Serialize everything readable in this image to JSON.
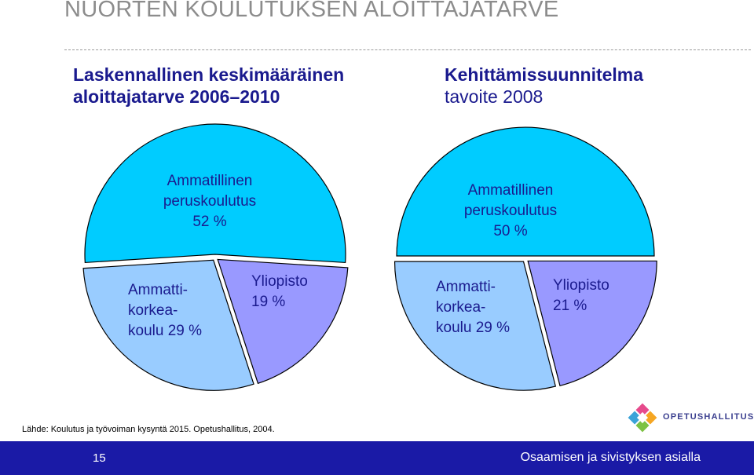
{
  "slide": {
    "title": "NUORTEN KOULUTUKSEN ALOITTAJATARVE",
    "source": "Lähde: Koulutus ja työvoiman kysyntä 2015. Opetushallitus, 2004.",
    "page_number": "15",
    "tagline": "Osaamisen ja sivistyksen asialla",
    "logo_text": "OPETUSHALLITUS",
    "colors": {
      "ammatillinen": "#00ccff",
      "ammattikorkeakoulu": "#99ccff",
      "yliopisto": "#9999ff",
      "heading": "#1a1a8e",
      "footer": "#1a1aa6"
    }
  },
  "chart_data": [
    {
      "type": "pie",
      "title_lines": [
        "Laskennallinen keskimääräinen",
        "aloittajatarve 2006–2010"
      ],
      "slices": [
        {
          "label_lines": [
            "Ammatillinen",
            "peruskoulutus",
            "52 %"
          ],
          "value": 52,
          "color": "#00ccff"
        },
        {
          "label_lines": [
            "Yliopisto",
            "19 %"
          ],
          "value": 19,
          "color": "#9999ff"
        },
        {
          "label_lines": [
            "Ammatti-",
            "korkea-",
            "koulu 29 %"
          ],
          "value": 29,
          "color": "#99ccff"
        }
      ]
    },
    {
      "type": "pie",
      "title_lines": [
        "Kehittämissuunnitelma",
        "tavoite 2008"
      ],
      "slices": [
        {
          "label_lines": [
            "Ammatillinen",
            "peruskoulutus",
            "50 %"
          ],
          "value": 50,
          "color": "#00ccff"
        },
        {
          "label_lines": [
            "Yliopisto",
            "21 %"
          ],
          "value": 21,
          "color": "#9999ff"
        },
        {
          "label_lines": [
            "Ammatti-",
            "korkea-",
            "koulu 29 %"
          ],
          "value": 29,
          "color": "#99ccff"
        }
      ]
    }
  ]
}
